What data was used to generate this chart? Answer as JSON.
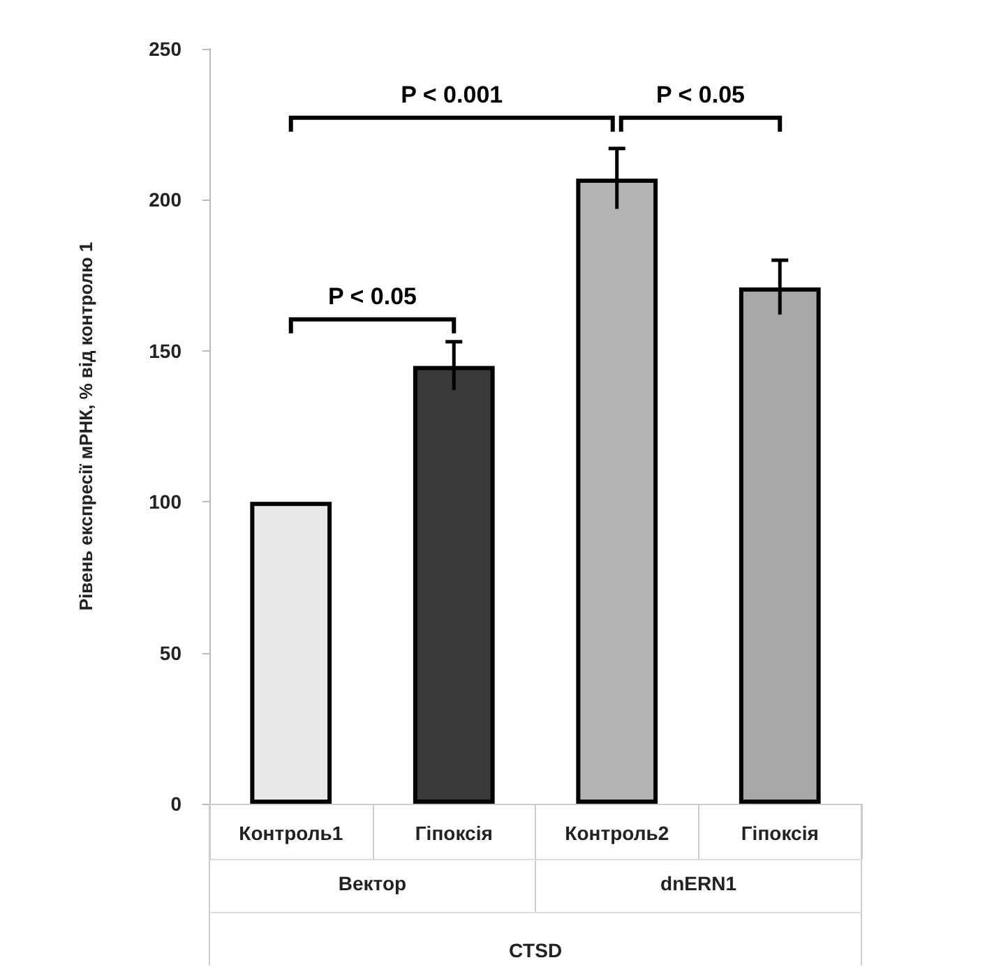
{
  "chart_data": {
    "type": "bar",
    "ylabel": "Рівень експресії мРНК, % від контролю 1",
    "xlabel": "CTSD",
    "categories": [
      "Контроль1",
      "Гіпоксія",
      "Контроль2",
      "Гіпоксія"
    ],
    "values": [
      100,
      145,
      207,
      171
    ],
    "errors": [
      null,
      8,
      10,
      9
    ],
    "colors": [
      "#e8e8e8",
      "#3a3a3a",
      "#b4b4b4",
      "#a8a8a8"
    ],
    "ylim": [
      0,
      250
    ],
    "yticks": [
      0,
      50,
      100,
      150,
      200,
      250
    ],
    "annotations": [
      "P < 0.05",
      "P < 0.001",
      "P < 0.05",
      "Вектор",
      "dnERN1"
    ]
  }
}
